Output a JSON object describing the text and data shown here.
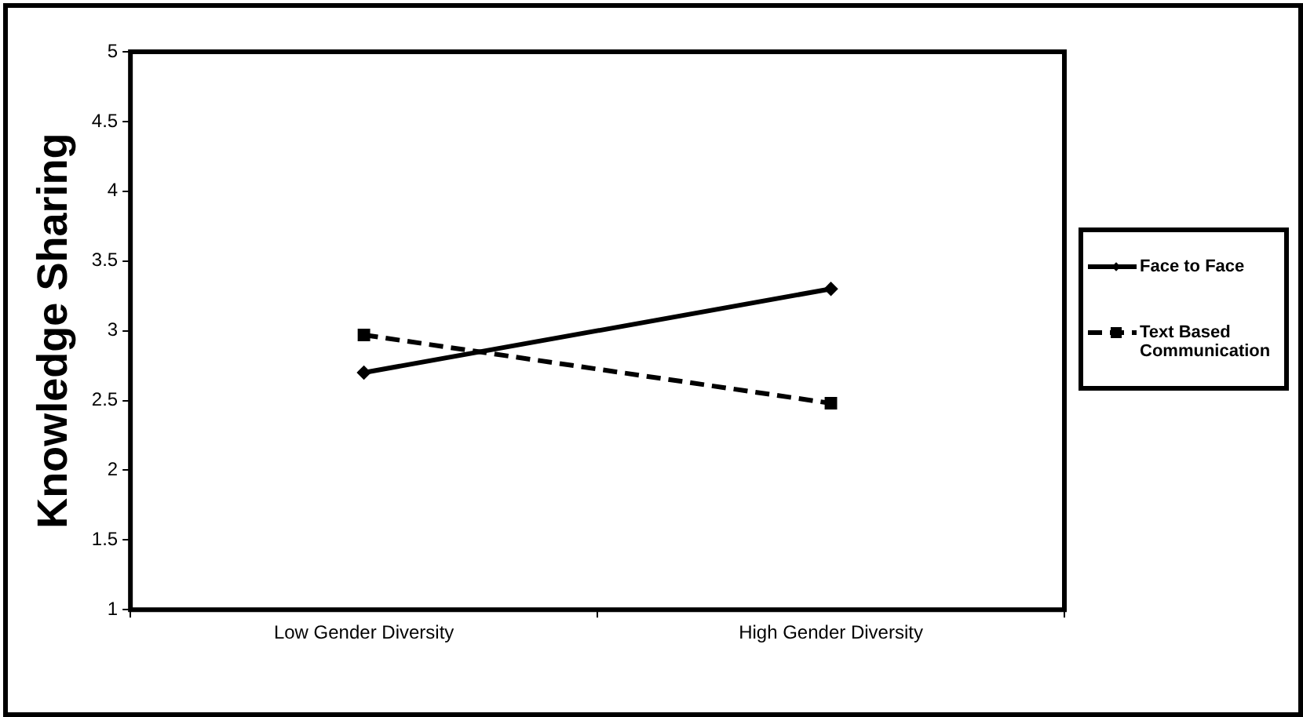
{
  "chart_data": {
    "type": "line",
    "ylabel": "Knowledge Sharing",
    "categories": [
      "Low Gender Diversity",
      "High Gender Diversity"
    ],
    "series": [
      {
        "name": "Face to Face",
        "color": "#000000",
        "values": [
          2.7,
          3.3
        ],
        "line_style": "solid",
        "marker": "diamond"
      },
      {
        "name": "Text Based Communication",
        "color": "#000000",
        "values": [
          2.97,
          2.48
        ],
        "line_style": "dashed",
        "marker": "square"
      }
    ],
    "ylim": [
      1,
      5
    ],
    "yticks": [
      1,
      1.5,
      2,
      2.5,
      3,
      3.5,
      4,
      4.5,
      5
    ],
    "grid": false,
    "legend": "right"
  }
}
